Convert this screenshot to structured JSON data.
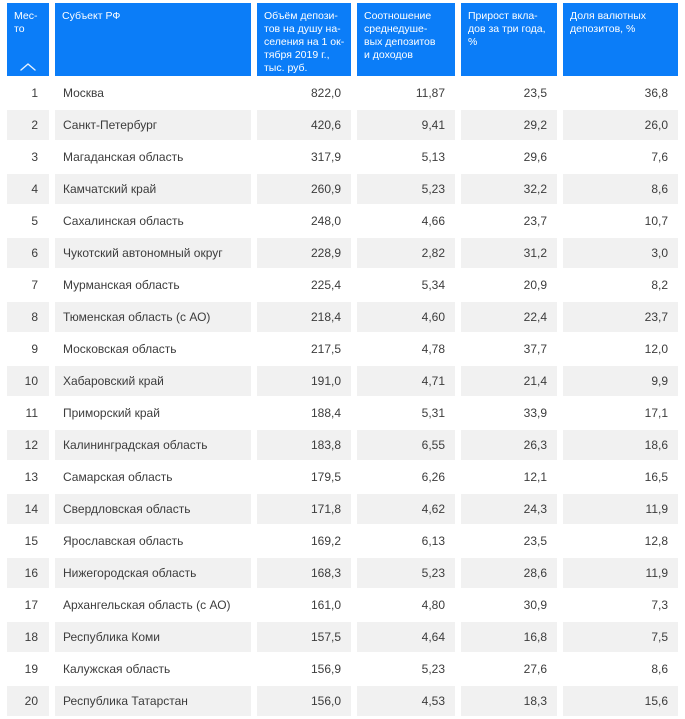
{
  "colors": {
    "header_bg": "#0b7df8",
    "header_text": "#ffffff",
    "stripe_bg": "#f1f1f1",
    "body_text": "#3c3c3c"
  },
  "chart_data": {
    "type": "table",
    "title": "",
    "legend": "none",
    "sort_icon": "chevron-up-icon",
    "sorted_column": "Место",
    "columns": [
      {
        "id": "rank",
        "label": "Мес-\nто"
      },
      {
        "id": "region",
        "label": "Субъект РФ"
      },
      {
        "id": "deposits_per_capita",
        "label": "Объём депози-\nтов на душу на-\nселения на 1 ок-\nтября 2019 г.,\nтыс. руб."
      },
      {
        "id": "deposit_income_ratio",
        "label": "Соотношение\nсреднедуше-\nвых депозитов\nи доходов"
      },
      {
        "id": "deposit_growth_3y_pct",
        "label": "Прирост вкла-\nдов за три года,\n%"
      },
      {
        "id": "fx_deposit_share_pct",
        "label": "Доля валютных\nдепозитов, %"
      }
    ],
    "rows": [
      [
        "1",
        "Москва",
        "822,0",
        "11,87",
        "23,5",
        "36,8"
      ],
      [
        "2",
        "Санкт-Петербург",
        "420,6",
        "9,41",
        "29,2",
        "26,0"
      ],
      [
        "3",
        "Магаданская область",
        "317,9",
        "5,13",
        "29,6",
        "7,6"
      ],
      [
        "4",
        "Камчатский край",
        "260,9",
        "5,23",
        "32,2",
        "8,6"
      ],
      [
        "5",
        "Сахалинская область",
        "248,0",
        "4,66",
        "23,7",
        "10,7"
      ],
      [
        "6",
        "Чукотский автономный округ",
        "228,9",
        "2,82",
        "31,2",
        "3,0"
      ],
      [
        "7",
        "Мурманская область",
        "225,4",
        "5,34",
        "20,9",
        "8,2"
      ],
      [
        "8",
        "Тюменская область (с АО)",
        "218,4",
        "4,60",
        "22,4",
        "23,7"
      ],
      [
        "9",
        "Московская область",
        "217,5",
        "4,78",
        "37,7",
        "12,0"
      ],
      [
        "10",
        "Хабаровский край",
        "191,0",
        "4,71",
        "21,4",
        "9,9"
      ],
      [
        "11",
        "Приморский край",
        "188,4",
        "5,31",
        "33,9",
        "17,1"
      ],
      [
        "12",
        "Калининградская область",
        "183,8",
        "6,55",
        "26,3",
        "18,6"
      ],
      [
        "13",
        "Самарская область",
        "179,5",
        "6,26",
        "12,1",
        "16,5"
      ],
      [
        "14",
        "Свердловская область",
        "171,8",
        "4,62",
        "24,3",
        "11,9"
      ],
      [
        "15",
        "Ярославская область",
        "169,2",
        "6,13",
        "23,5",
        "12,8"
      ],
      [
        "16",
        "Нижегородская область",
        "168,3",
        "5,23",
        "28,6",
        "11,9"
      ],
      [
        "17",
        "Архангельская область (с АО)",
        "161,0",
        "4,80",
        "30,9",
        "7,3"
      ],
      [
        "18",
        "Республика Коми",
        "157,5",
        "4,64",
        "16,8",
        "7,5"
      ],
      [
        "19",
        "Калужская область",
        "156,9",
        "5,23",
        "27,6",
        "8,6"
      ],
      [
        "20",
        "Республика Татарстан",
        "156,0",
        "4,53",
        "18,3",
        "15,6"
      ]
    ]
  }
}
